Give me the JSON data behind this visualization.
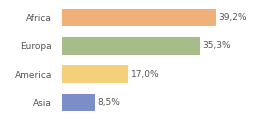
{
  "categories": [
    "Africa",
    "Europa",
    "America",
    "Asia"
  ],
  "values": [
    39.2,
    35.3,
    17.0,
    8.5
  ],
  "labels": [
    "39,2%",
    "35,3%",
    "17,0%",
    "8,5%"
  ],
  "bar_colors": [
    "#f0b07a",
    "#a8bc8a",
    "#f5d07a",
    "#7b8ec8"
  ],
  "background_color": "#ffffff",
  "xlim": [
    0,
    47
  ],
  "label_fontsize": 6.5,
  "tick_fontsize": 6.5,
  "bar_height": 0.62
}
